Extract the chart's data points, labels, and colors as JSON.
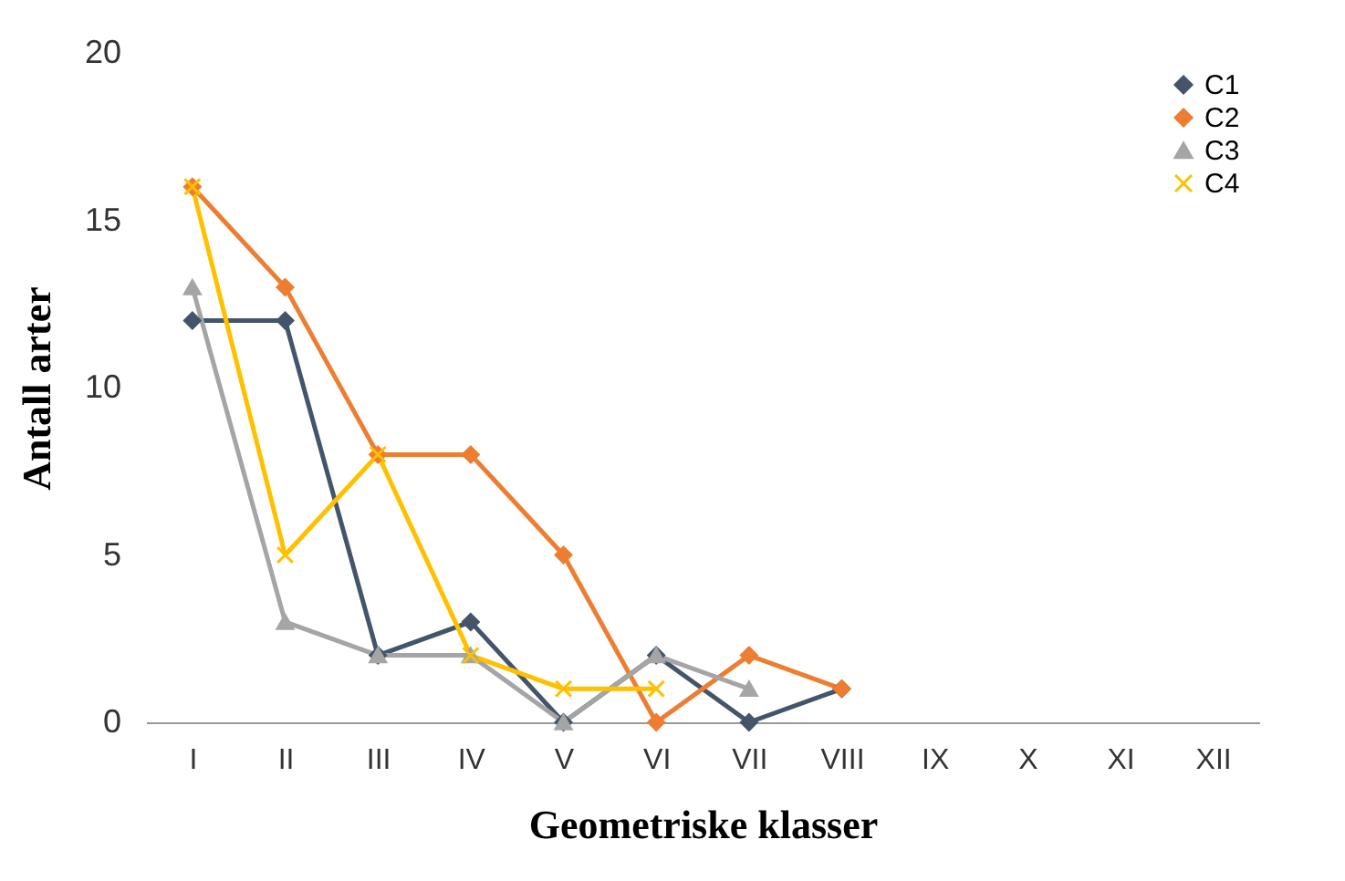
{
  "chart_data": {
    "type": "line",
    "xlabel": "Geometriske klasser",
    "ylabel": "Antall arter",
    "categories": [
      "I",
      "II",
      "III",
      "IV",
      "V",
      "VI",
      "VII",
      "VIII",
      "IX",
      "X",
      "XI",
      "XII"
    ],
    "series": [
      {
        "name": "C1",
        "color": "#44546a",
        "marker": "diamond",
        "values": [
          12,
          12,
          2,
          3,
          0,
          2,
          0,
          1,
          null,
          null,
          null,
          null
        ]
      },
      {
        "name": "C2",
        "color": "#ed7d31",
        "marker": "diamond",
        "values": [
          16,
          13,
          8,
          8,
          5,
          0,
          2,
          1,
          null,
          null,
          null,
          null
        ]
      },
      {
        "name": "C3",
        "color": "#a5a5a5",
        "marker": "triangle",
        "values": [
          13,
          3,
          2,
          2,
          0,
          2,
          1,
          null,
          null,
          null,
          null,
          null
        ]
      },
      {
        "name": "C4",
        "color": "#ffc000",
        "marker": "cross",
        "values": [
          16,
          5,
          8,
          2,
          1,
          1,
          null,
          null,
          null,
          null,
          null,
          null
        ]
      }
    ],
    "ylim": [
      0,
      20
    ],
    "yticks": [
      0,
      5,
      10,
      15,
      20
    ],
    "grid": false,
    "legend": "top right"
  }
}
